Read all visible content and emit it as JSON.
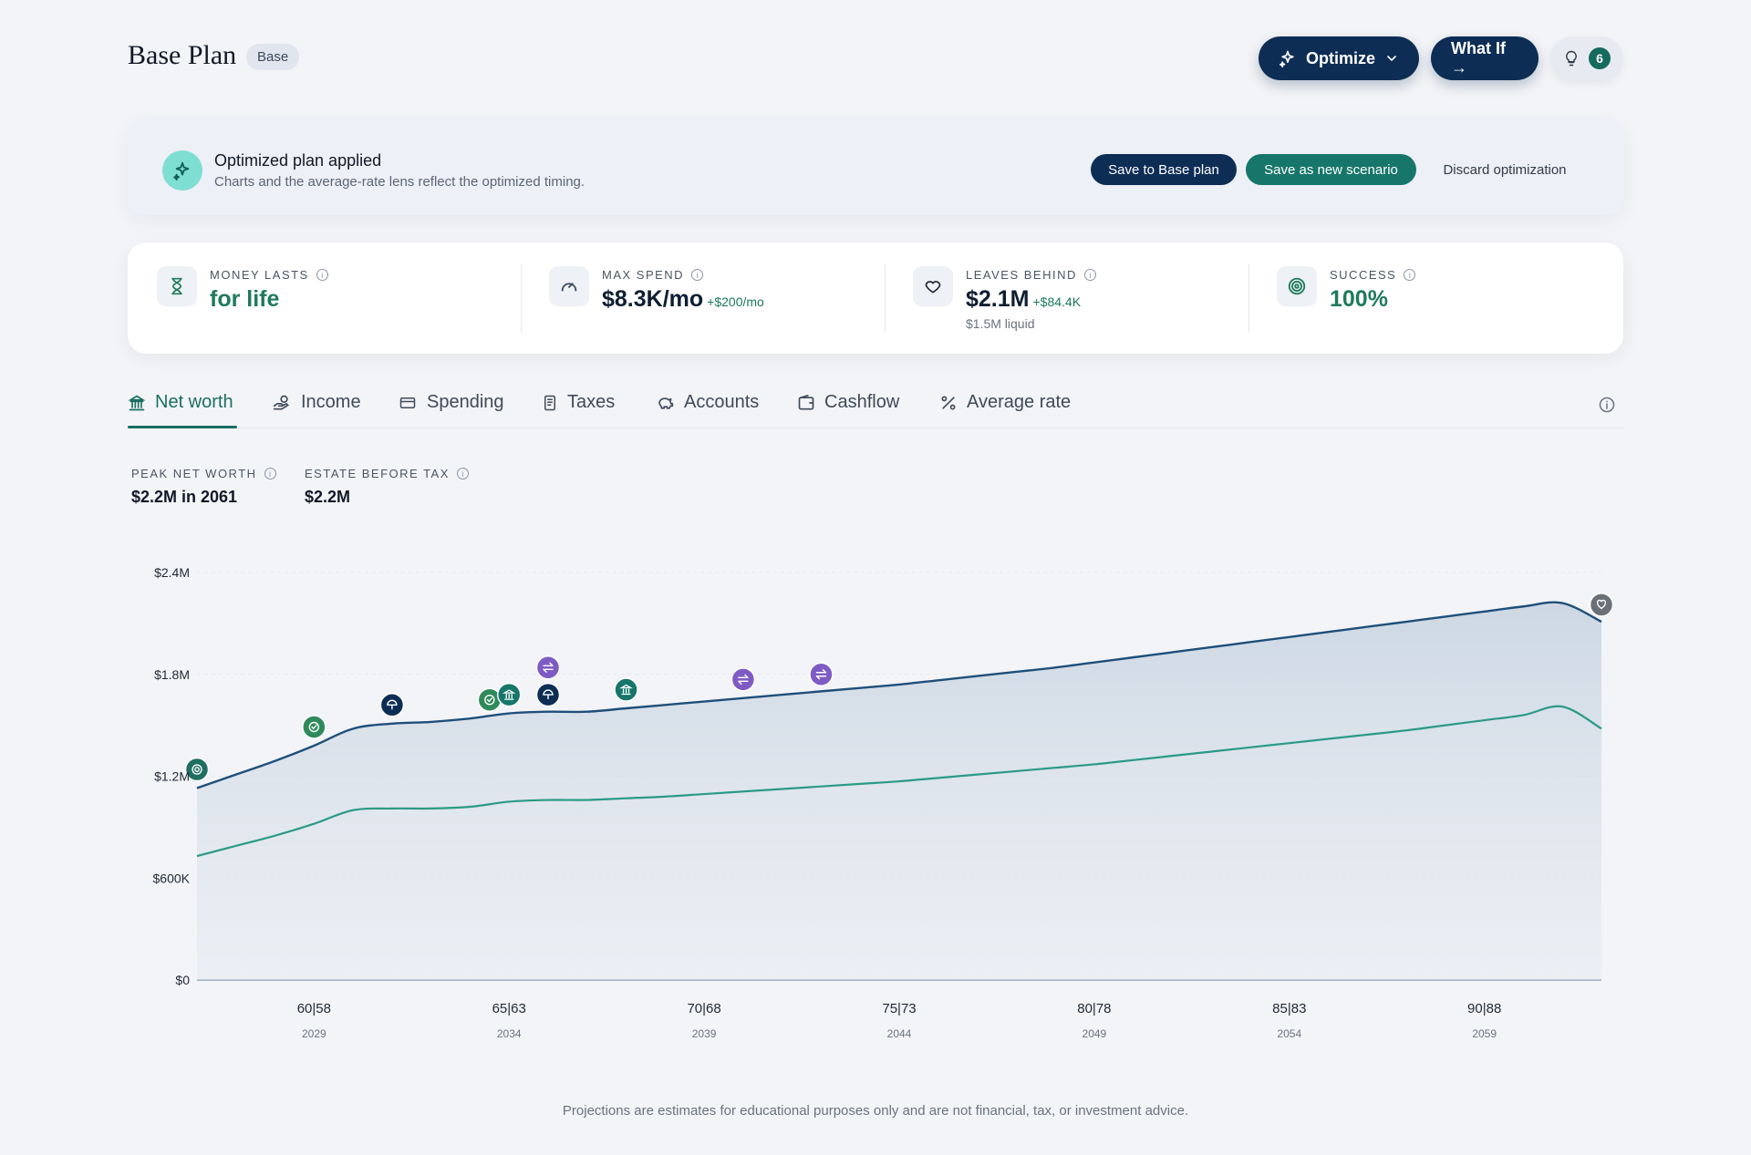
{
  "header": {
    "title": "Base Plan",
    "badge": "Base",
    "optimize_label": "Optimize",
    "whatif_label": "What If →",
    "insights_count": "6"
  },
  "banner": {
    "title": "Optimized plan applied",
    "subtitle": "Charts and the average-rate lens reflect the optimized timing.",
    "save_base_label": "Save to Base plan",
    "save_scenario_label": "Save as new scenario",
    "discard_label": "Discard optimization"
  },
  "metrics": {
    "money_lasts": {
      "label": "MONEY LASTS",
      "value": "for life",
      "icon": "hourglass-icon"
    },
    "max_spend": {
      "label": "MAX SPEND",
      "value": "$8.3K/mo",
      "delta": "+$200/mo",
      "icon": "gauge-icon"
    },
    "leaves_behind": {
      "label": "LEAVES BEHIND",
      "value": "$2.1M",
      "delta": "+$84.4K",
      "sub": "$1.5M liquid",
      "icon": "heart-icon"
    },
    "success": {
      "label": "SUCCESS",
      "value": "100%",
      "icon": "target-icon"
    }
  },
  "tabs": [
    {
      "label": "Net worth",
      "icon": "bank-icon",
      "active": true
    },
    {
      "label": "Income",
      "icon": "hand-coins-icon"
    },
    {
      "label": "Spending",
      "icon": "card-icon"
    },
    {
      "label": "Taxes",
      "icon": "receipt-icon"
    },
    {
      "label": "Accounts",
      "icon": "piggy-bank-icon"
    },
    {
      "label": "Cashflow",
      "icon": "wallet-icon"
    },
    {
      "label": "Average rate",
      "icon": "percent-icon"
    }
  ],
  "kpis": {
    "peak": {
      "label": "PEAK NET WORTH",
      "value": "$2.2M in 2061"
    },
    "estate": {
      "label": "ESTATE BEFORE TAX",
      "value": "$2.2M"
    }
  },
  "colors": {
    "navy": "#0d2d55",
    "teal": "#17766a",
    "net_worth_line": "#1e4f7a",
    "liquid_line": "#2a9a86",
    "event_purple": "#7e5bc4",
    "event_green": "#2f8a5b"
  },
  "chart_data": {
    "type": "area",
    "yticks": [
      "$2.4M",
      "$1.8M",
      "$1.2M",
      "$600K",
      "$0"
    ],
    "ylim": [
      0,
      2400000
    ],
    "xticks": [
      {
        "age": "60|58",
        "year": "2029"
      },
      {
        "age": "65|63",
        "year": "2034"
      },
      {
        "age": "70|68",
        "year": "2039"
      },
      {
        "age": "75|73",
        "year": "2044"
      },
      {
        "age": "80|78",
        "year": "2049"
      },
      {
        "age": "85|83",
        "year": "2054"
      },
      {
        "age": "90|88",
        "year": "2059"
      }
    ],
    "x": [
      2026,
      2027,
      2028,
      2029,
      2030,
      2031,
      2032,
      2033,
      2034,
      2035,
      2036,
      2037,
      2038,
      2039,
      2040,
      2041,
      2042,
      2043,
      2044,
      2045,
      2046,
      2047,
      2048,
      2049,
      2050,
      2051,
      2052,
      2053,
      2054,
      2055,
      2056,
      2057,
      2058,
      2059,
      2060,
      2061,
      2062
    ],
    "series": [
      {
        "values": [
          1130000,
          1210000,
          1290000,
          1380000,
          1480000,
          1510000,
          1520000,
          1540000,
          1570000,
          1580000,
          1580000,
          1600000,
          1620000,
          1640000,
          1660000,
          1680000,
          1700000,
          1720000,
          1740000,
          1765000,
          1790000,
          1815000,
          1840000,
          1870000,
          1900000,
          1930000,
          1960000,
          1990000,
          2020000,
          2050000,
          2080000,
          2110000,
          2140000,
          2170000,
          2200000,
          2220000,
          2110000
        ]
      },
      {
        "values": [
          730000,
          790000,
          850000,
          920000,
          1000000,
          1010000,
          1010000,
          1020000,
          1050000,
          1060000,
          1060000,
          1070000,
          1080000,
          1095000,
          1110000,
          1125000,
          1140000,
          1155000,
          1170000,
          1190000,
          1210000,
          1230000,
          1250000,
          1270000,
          1295000,
          1320000,
          1345000,
          1370000,
          1395000,
          1420000,
          1445000,
          1470000,
          1500000,
          1530000,
          1560000,
          1610000,
          1480000
        ]
      }
    ],
    "events": [
      {
        "year": 2026,
        "value": 1240000,
        "kind": "target",
        "color": "#1f6e62"
      },
      {
        "year": 2029,
        "value": 1490000,
        "kind": "check",
        "color": "#2f8a5b"
      },
      {
        "year": 2031,
        "value": 1620000,
        "kind": "umbrella",
        "color": "#0d2d55"
      },
      {
        "year": 2033.5,
        "value": 1650000,
        "kind": "check",
        "color": "#2f8a5b"
      },
      {
        "year": 2034,
        "value": 1680000,
        "kind": "bank",
        "color": "#17766a"
      },
      {
        "year": 2035,
        "value": 1680000,
        "kind": "umbrella",
        "color": "#0d2d55"
      },
      {
        "year": 2035,
        "value": 1840000,
        "kind": "swap",
        "color": "#7e5bc4"
      },
      {
        "year": 2037,
        "value": 1710000,
        "kind": "bank",
        "color": "#17766a"
      },
      {
        "year": 2040,
        "value": 1770000,
        "kind": "swap",
        "color": "#7e5bc4"
      },
      {
        "year": 2042,
        "value": 1800000,
        "kind": "swap",
        "color": "#7e5bc4"
      },
      {
        "year": 2062,
        "value": 2210000,
        "kind": "heart",
        "color": "#6b6f78"
      }
    ]
  },
  "footer": {
    "disclaimer": "Projections are estimates for educational purposes only and are not financial, tax, or investment advice."
  }
}
